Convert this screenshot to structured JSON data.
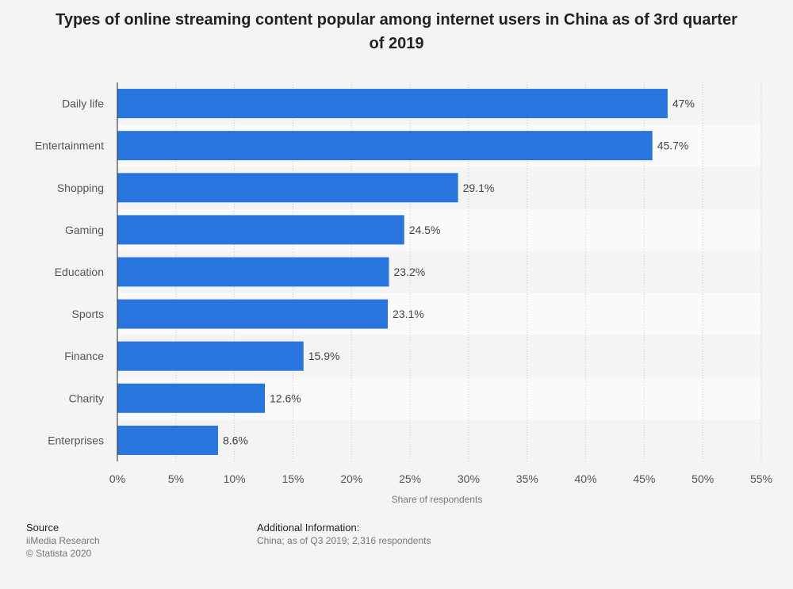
{
  "title": "Types of online streaming content popular among internet users in China as of 3rd quarter of 2019",
  "chart_data": {
    "type": "bar",
    "orientation": "horizontal",
    "categories": [
      "Daily life",
      "Entertainment",
      "Shopping",
      "Gaming",
      "Education",
      "Sports",
      "Finance",
      "Charity",
      "Enterprises"
    ],
    "values": [
      47,
      45.7,
      29.1,
      24.5,
      23.2,
      23.1,
      15.9,
      12.6,
      8.6
    ],
    "value_labels": [
      "47%",
      "45.7%",
      "29.1%",
      "24.5%",
      "23.2%",
      "23.1%",
      "15.9%",
      "12.6%",
      "8.6%"
    ],
    "xlabel": "Share of respondents",
    "ylabel": "",
    "xlim": [
      0,
      55
    ],
    "ticks": [
      0,
      5,
      10,
      15,
      20,
      25,
      30,
      35,
      40,
      45,
      50,
      55
    ],
    "tick_labels": [
      "0%",
      "5%",
      "10%",
      "15%",
      "20%",
      "25%",
      "30%",
      "35%",
      "40%",
      "45%",
      "50%",
      "55%"
    ],
    "bar_color": "#2876dd",
    "grid": true
  },
  "footer": {
    "source_heading": "Source",
    "source_name": "iiMedia Research",
    "copyright": "© Statista 2020",
    "info_heading": "Additional Information:",
    "info_text": "China; as of Q3 2019; 2,316 respondents"
  }
}
